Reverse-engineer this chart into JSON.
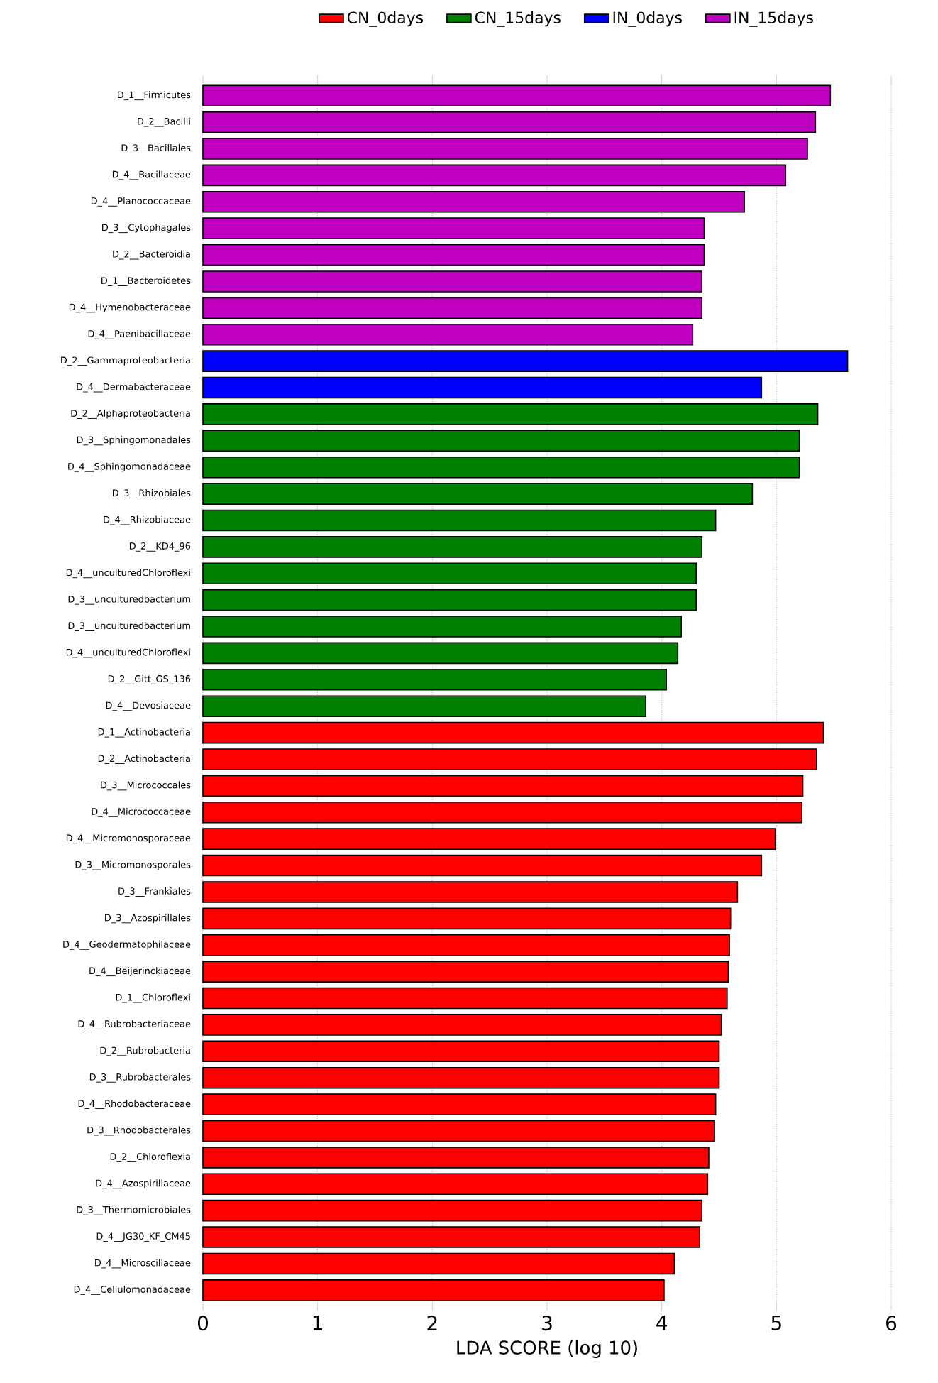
{
  "chart_data": {
    "type": "bar",
    "orientation": "horizontal",
    "xlabel": "LDA SCORE (log 10)",
    "categories": [
      "D_1__Firmicutes",
      "D_2__Bacilli",
      "D_3__Bacillales",
      "D_4__Bacillaceae",
      "D_4__Planococcaceae",
      "D_3__Cytophagales",
      "D_2__Bacteroidia",
      "D_1__Bacteroidetes",
      "D_4__Hymenobacteraceae",
      "D_4__Paenibacillaceae",
      "D_2__Gammaproteobacteria",
      "D_4__Dermabacteraceae",
      "D_2__Alphaproteobacteria",
      "D_3__Sphingomonadales",
      "D_4__Sphingomonadaceae",
      "D_3__Rhizobiales",
      "D_4__Rhizobiaceae",
      "D_2__KD4_96",
      "D_4__unculturedChloroflexi",
      "D_3__unculturedbacterium",
      "D_3__unculturedbacterium",
      "D_4__unculturedChloroflexi",
      "D_2__Gitt_GS_136",
      "D_4__Devosiaceae",
      "D_1__Actinobacteria",
      "D_2__Actinobacteria",
      "D_3__Micrococcales",
      "D_4__Micrococcaceae",
      "D_4__Micromonosporaceae",
      "D_3__Micromonosporales",
      "D_3__Frankiales",
      "D_3__Azospirillales",
      "D_4__Geodermatophilaceae",
      "D_4__Beijerinckiaceae",
      "D_1__Chloroflexi",
      "D_4__Rubrobacteriaceae",
      "D_2__Rubrobacteria",
      "D_3__Rubrobacterales",
      "D_4__Rhodobacteraceae",
      "D_3__Rhodobacterales",
      "D_2__Chloroflexia",
      "D_4__Azospirillaceae",
      "D_3__Thermomicrobiales",
      "D_4__JG30_KF_CM45",
      "D_4__Microscillaceae",
      "D_4__Cellulomonadaceae"
    ],
    "series": [
      {
        "name": "CN_0days",
        "color": "#ff0000",
        "values": [
          null,
          null,
          null,
          null,
          null,
          null,
          null,
          null,
          null,
          null,
          null,
          null,
          null,
          null,
          null,
          null,
          null,
          null,
          null,
          null,
          null,
          null,
          null,
          null,
          5.41,
          5.35,
          5.23,
          5.22,
          4.99,
          4.87,
          4.66,
          4.6,
          4.59,
          4.58,
          4.57,
          4.52,
          4.5,
          4.5,
          4.47,
          4.46,
          4.41,
          4.4,
          4.35,
          4.33,
          4.11,
          4.02
        ]
      },
      {
        "name": "CN_15days",
        "color": "#008000",
        "values": [
          null,
          null,
          null,
          null,
          null,
          null,
          null,
          null,
          null,
          null,
          null,
          null,
          5.36,
          5.2,
          5.2,
          4.79,
          4.47,
          4.35,
          4.3,
          4.3,
          4.17,
          4.14,
          4.04,
          3.86,
          null,
          null,
          null,
          null,
          null,
          null,
          null,
          null,
          null,
          null,
          null,
          null,
          null,
          null,
          null,
          null,
          null,
          null,
          null,
          null,
          null,
          null
        ]
      },
      {
        "name": "IN_0days",
        "color": "#0000ff",
        "values": [
          null,
          null,
          null,
          null,
          null,
          null,
          null,
          null,
          null,
          null,
          5.62,
          4.87,
          null,
          null,
          null,
          null,
          null,
          null,
          null,
          null,
          null,
          null,
          null,
          null,
          null,
          null,
          null,
          null,
          null,
          null,
          null,
          null,
          null,
          null,
          null,
          null,
          null,
          null,
          null,
          null,
          null,
          null,
          null,
          null,
          null,
          null
        ]
      },
      {
        "name": "IN_15days",
        "color": "#c000c0",
        "values": [
          5.47,
          5.34,
          5.27,
          5.08,
          4.72,
          4.37,
          4.37,
          4.35,
          4.35,
          4.27,
          null,
          null,
          null,
          null,
          null,
          null,
          null,
          null,
          null,
          null,
          null,
          null,
          null,
          null,
          null,
          null,
          null,
          null,
          null,
          null,
          null,
          null,
          null,
          null,
          null,
          null,
          null,
          null,
          null,
          null,
          null,
          null,
          null,
          null,
          null,
          null
        ]
      }
    ],
    "xlim": [
      0,
      6
    ],
    "xticks": [
      0,
      1,
      2,
      3,
      4,
      5,
      6
    ],
    "grid": "x",
    "legend": "top"
  }
}
